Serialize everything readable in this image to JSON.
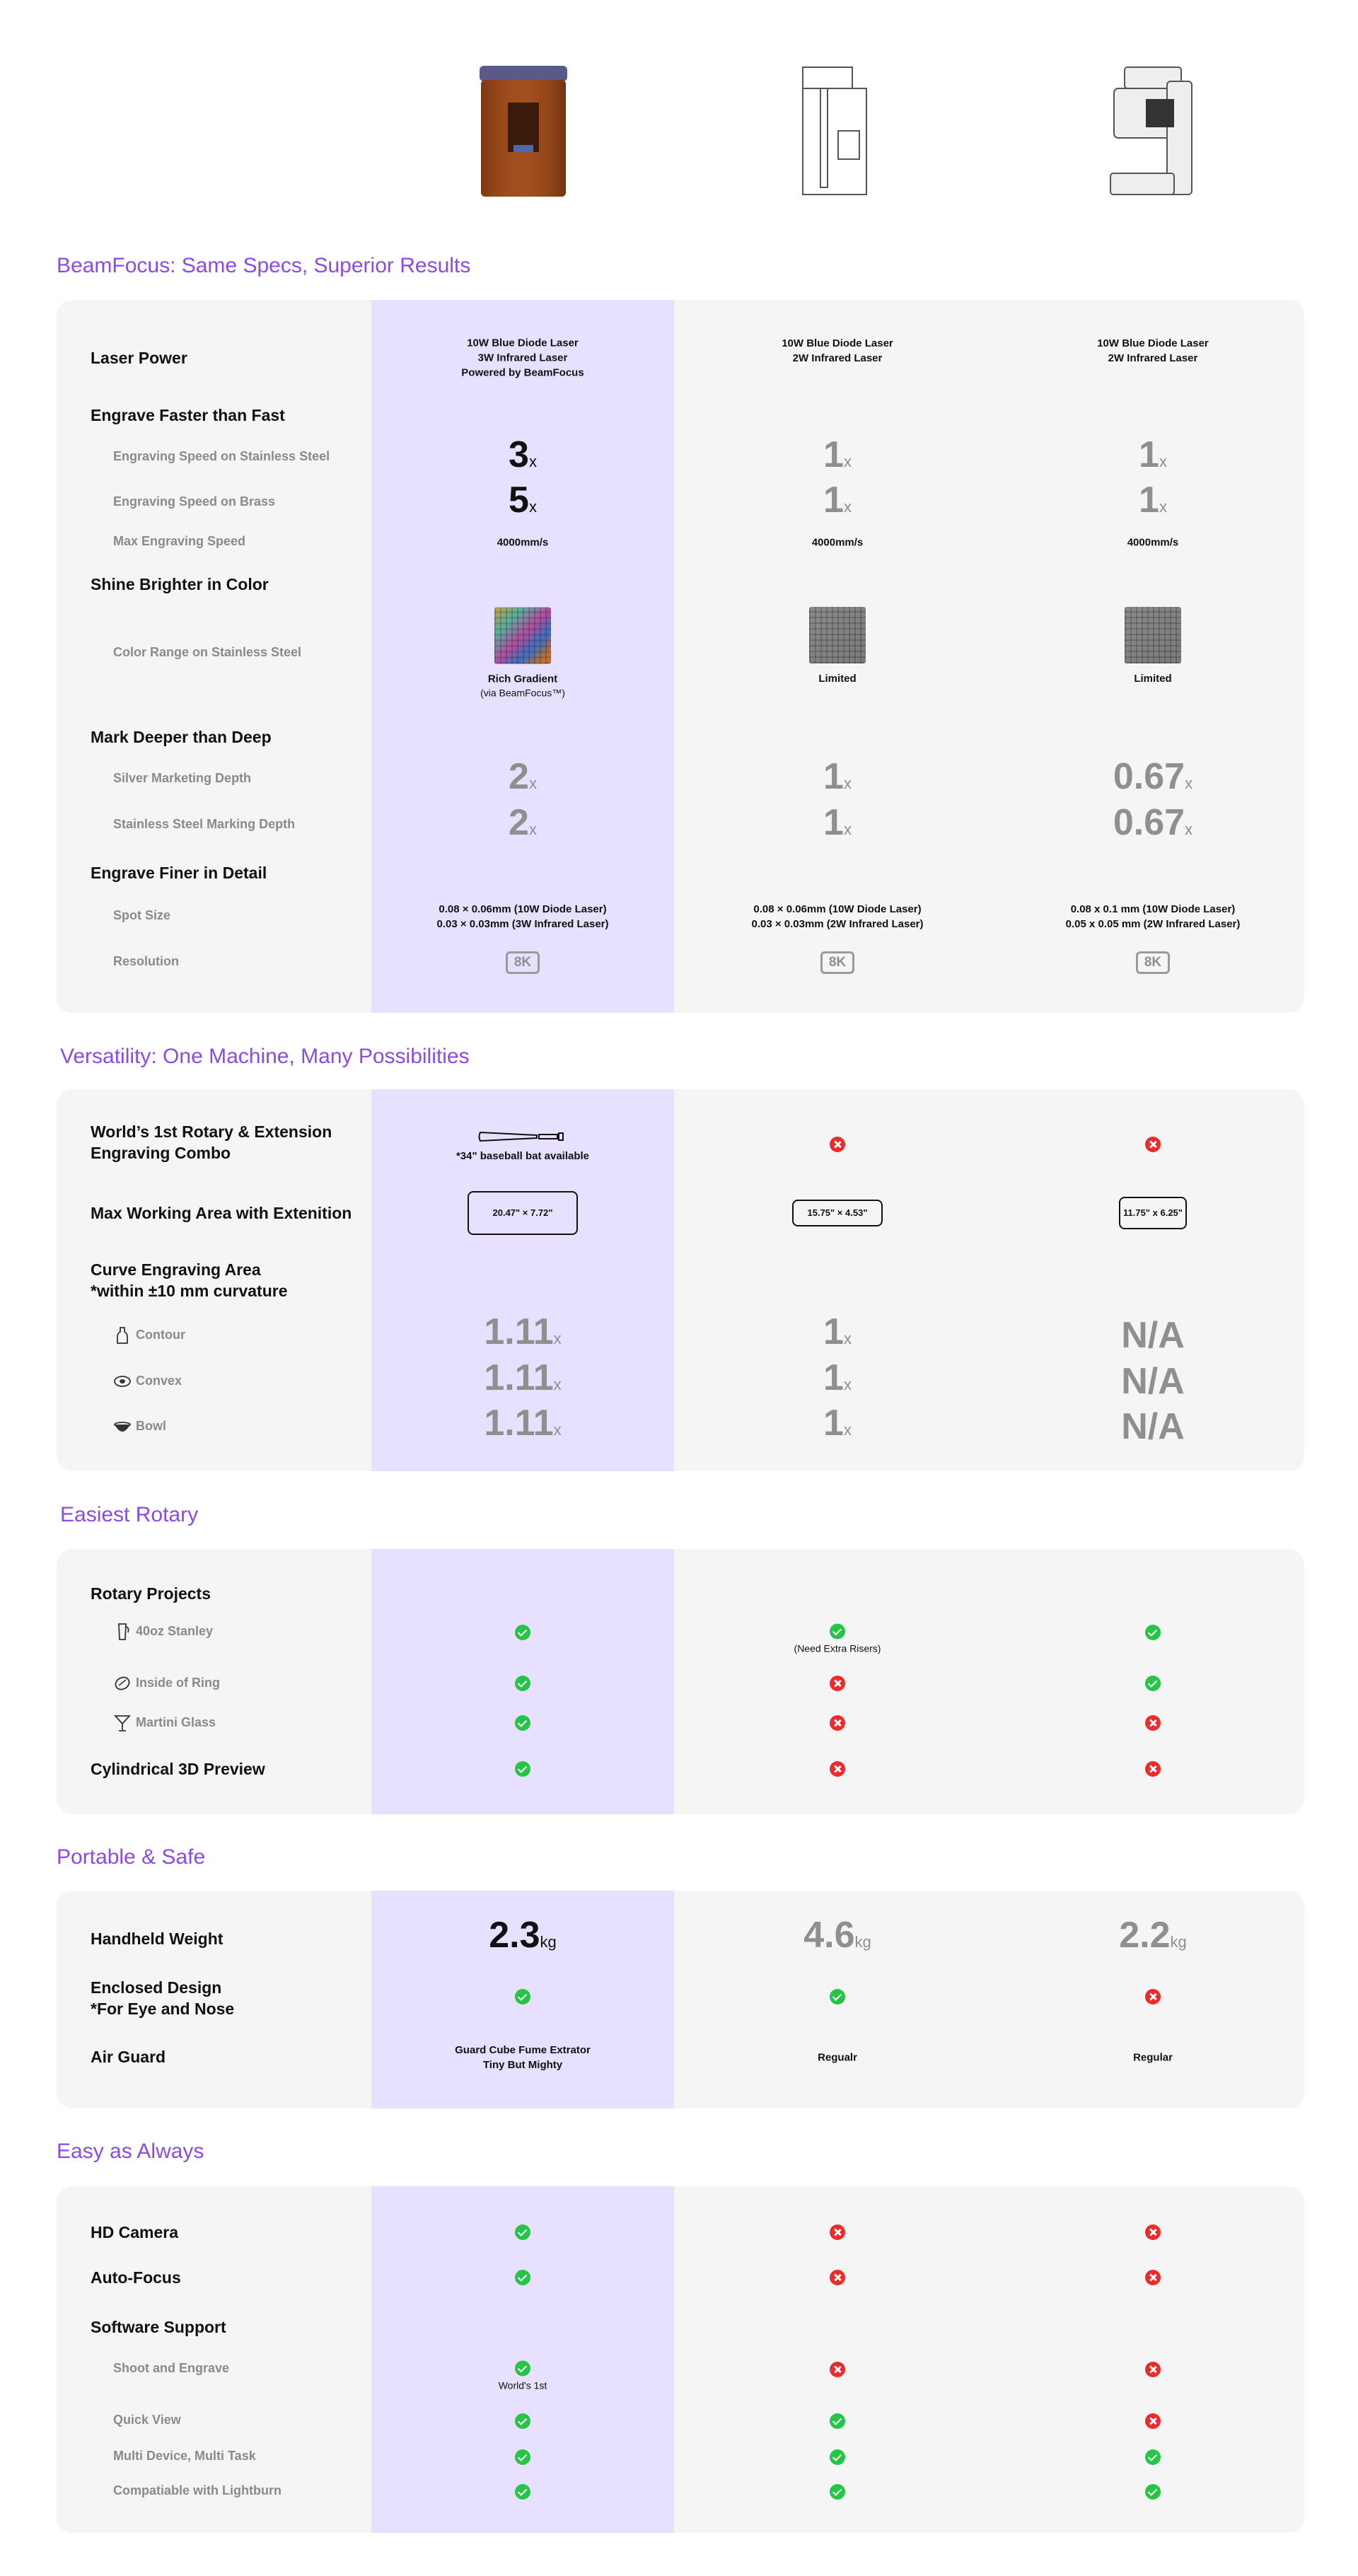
{
  "products": [
    {
      "name": "product-1-image",
      "accent": "#8a3c12"
    },
    {
      "name": "product-2-image"
    },
    {
      "name": "product-3-image"
    }
  ],
  "sec1": {
    "title": "BeamFocus: Same Specs, Superior Results",
    "laser_power": {
      "label": "Laser Power",
      "c1": [
        "10W Blue Diode Laser",
        "3W Infrared Laser",
        "Powered by BeamFocus"
      ],
      "c2": [
        "10W Blue Diode Laser",
        "2W Infrared Laser"
      ],
      "c3": [
        "10W Blue Diode Laser",
        "2W Infrared Laser"
      ]
    },
    "engrave_header": "Engrave Faster than Fast",
    "speed_ss": {
      "label": "Engraving Speed on Stainless Steel",
      "c1": "3",
      "c2": "1",
      "c3": "1",
      "unit": "x"
    },
    "speed_brass": {
      "label": "Engraving Speed on Brass",
      "c1": "5",
      "c2": "1",
      "c3": "1",
      "unit": "x"
    },
    "max_speed": {
      "label": "Max Engraving Speed",
      "c1": "4000mm/s",
      "c2": "4000mm/s",
      "c3": "4000mm/s"
    },
    "shine_header": "Shine Brighter in Color",
    "color_range": {
      "label": "Color Range on Stainless Steel",
      "c1": "Rich Gradient",
      "c1_sub": "(via BeamFocus™)",
      "c2": "Limited",
      "c3": "Limited"
    },
    "mark_header": "Mark Deeper than Deep",
    "silver_depth": {
      "label": "Silver Marketing Depth",
      "c1": "2",
      "c2": "1",
      "c3": "0.67",
      "unit": "x"
    },
    "steel_depth": {
      "label": "Stainless Steel Marking Depth",
      "c1": "2",
      "c2": "1",
      "c3": "0.67",
      "unit": "x"
    },
    "finer_header": "Engrave Finer in Detail",
    "spot": {
      "label": "Spot Size",
      "c1": [
        "0.08 × 0.06mm (10W Diode Laser)",
        "0.03 × 0.03mm (3W Infrared Laser)"
      ],
      "c2": [
        "0.08 × 0.06mm (10W Diode Laser)",
        "0.03 × 0.03mm (2W Infrared Laser)"
      ],
      "c3": [
        "0.08 x 0.1 mm (10W Diode Laser)",
        "0.05 x 0.05 mm (2W Infrared Laser)"
      ]
    },
    "resolution": {
      "label": "Resolution",
      "c1": "8K",
      "c2": "8K",
      "c3": "8K"
    }
  },
  "sec2": {
    "title": "Versatility: One Machine, Many Possibilities",
    "rotary": {
      "label": [
        "World’s 1st Rotary & Extension",
        "Engraving Combo"
      ],
      "c1_note": "*34\" baseball bat available",
      "c2": "no",
      "c3": "no"
    },
    "area": {
      "label": "Max Working Area with Extenition",
      "c1": "20.47\" × 7.72\"",
      "c2": "15.75\" × 4.53\"",
      "c3": "11.75\" x 6.25\""
    },
    "curve": {
      "label": [
        "Curve Engraving Area",
        "*within ±10 mm curvature"
      ]
    },
    "contour": {
      "label": "Contour",
      "c1": "1.11",
      "c2": "1",
      "c3": "N/A",
      "unit": "x"
    },
    "convex": {
      "label": "Convex",
      "c1": "1.11",
      "c2": "1",
      "c3": "N/A",
      "unit": "x"
    },
    "bowl": {
      "label": "Bowl",
      "c1": "1.11",
      "c2": "1",
      "c3": "N/A",
      "unit": "x"
    }
  },
  "sec3": {
    "title": "Easiest Rotary",
    "rotary_header": "Rotary Projects",
    "stanley": {
      "label": "40oz Stanley",
      "c1": "ok",
      "c2": "ok",
      "c2_note": "(Need Extra Risers)",
      "c3": "ok"
    },
    "ring": {
      "label": "Inside of Ring",
      "c1": "ok",
      "c2": "no",
      "c3": "ok"
    },
    "martini": {
      "label": "Martini Glass",
      "c1": "ok",
      "c2": "no",
      "c3": "no"
    },
    "preview": {
      "label": "Cylindrical 3D Preview",
      "c1": "ok",
      "c2": "no",
      "c3": "no"
    }
  },
  "sec4": {
    "title": "Portable & Safe",
    "weight": {
      "label": "Handheld Weight",
      "c1": "2.3",
      "c2": "4.6",
      "c3": "2.2",
      "unit": "kg"
    },
    "enclosed": {
      "label": [
        "Enclosed Design",
        "*For Eye and Nose"
      ],
      "c1": "ok",
      "c2": "ok",
      "c3": "no"
    },
    "airguard": {
      "label": "Air Guard",
      "c1": [
        "Guard Cube Fume Extrator",
        "Tiny But Mighty"
      ],
      "c2": "Regualr",
      "c3": "Regular"
    }
  },
  "sec5": {
    "title": "Easy as Always",
    "camera": {
      "label": "HD Camera",
      "c1": "ok",
      "c2": "no",
      "c3": "no"
    },
    "autofocus": {
      "label": "Auto-Focus",
      "c1": "ok",
      "c2": "no",
      "c3": "no"
    },
    "software_header": "Software Support",
    "shoot": {
      "label": "Shoot and Engrave",
      "c1": "ok",
      "c1_note": "World's 1st",
      "c2": "no",
      "c3": "no"
    },
    "quickview": {
      "label": "Quick View",
      "c1": "ok",
      "c2": "ok",
      "c3": "no"
    },
    "multi": {
      "label": "Multi Device, Multi Task",
      "c1": "ok",
      "c2": "ok",
      "c3": "ok"
    },
    "lightburn": {
      "label": "Compatiable with Lightburn",
      "c1": "ok",
      "c2": "ok",
      "c3": "ok"
    }
  },
  "colors": {
    "accent": "#8c4ae8",
    "highlight": "#e8e0ff",
    "card": "#f5f5f5",
    "ok": "#26c447",
    "no": "#ee2b2b"
  }
}
